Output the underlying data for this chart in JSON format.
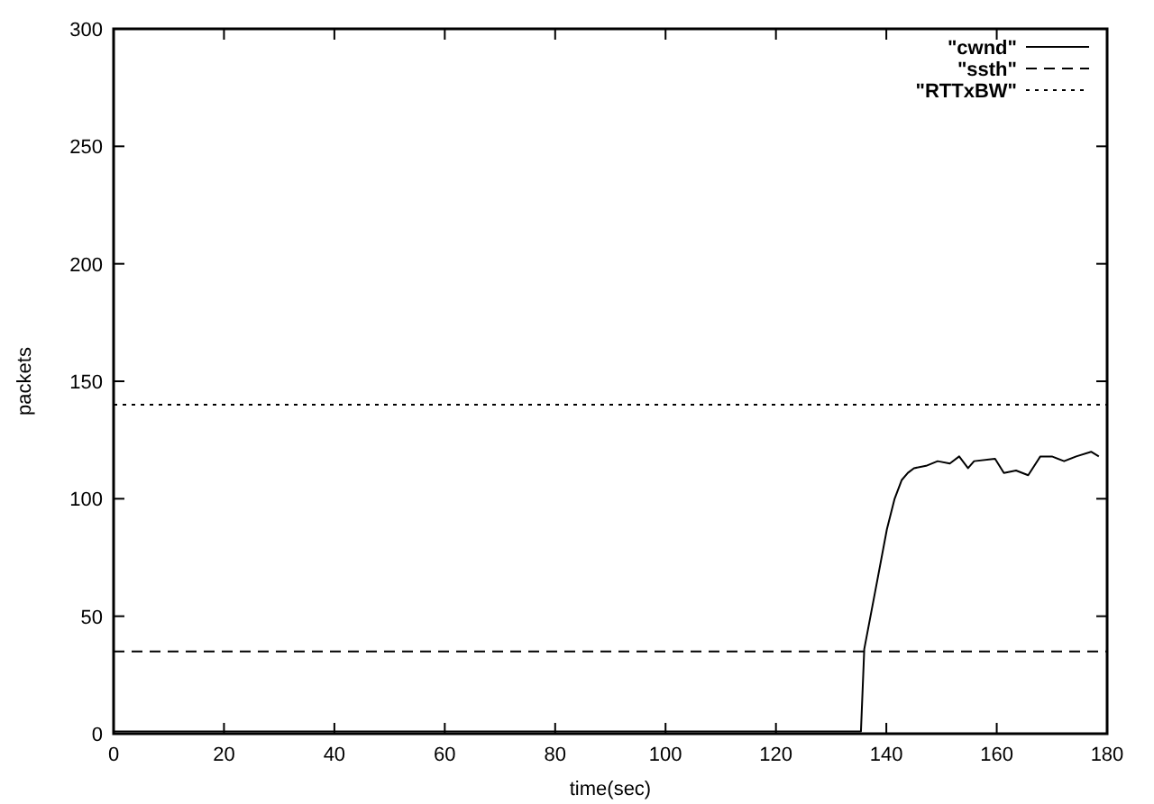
{
  "chart_data": {
    "type": "line",
    "xlabel": "time(sec)",
    "ylabel": "packets",
    "xlim": [
      0,
      180
    ],
    "ylim": [
      0,
      300
    ],
    "xticks": [
      0,
      20,
      40,
      60,
      80,
      100,
      120,
      140,
      160,
      180
    ],
    "yticks": [
      0,
      50,
      100,
      150,
      200,
      250,
      300
    ],
    "grid": false,
    "legend": "top right",
    "marker": "none",
    "series": [
      {
        "name": "\"cwnd\"",
        "color": "#000000",
        "line_style": "solid",
        "x": [
          0,
          135.4,
          136.0,
          138.5,
          140.1,
          141.5,
          142.8,
          143.9,
          145,
          147.2,
          149.3,
          151.5,
          153.2,
          154.8,
          155.9,
          159.7,
          161.3,
          163.5,
          165.7,
          167.9,
          170,
          172.2,
          174.4,
          177.1,
          178.5
        ],
        "values": [
          1,
          1,
          36,
          67,
          87,
          100,
          108,
          111,
          113,
          114,
          116,
          115,
          118,
          113,
          116,
          117,
          111,
          112,
          110,
          118,
          118,
          116,
          118,
          120,
          118
        ]
      },
      {
        "name": "\"ssth\"",
        "color": "#000000",
        "line_style": "dashed",
        "x": [
          0,
          180
        ],
        "values": [
          35,
          35
        ]
      },
      {
        "name": "\"RTTxBW\"",
        "color": "#000000",
        "line_style": "dotted",
        "x": [
          0,
          180
        ],
        "values": [
          140,
          140
        ]
      }
    ]
  }
}
